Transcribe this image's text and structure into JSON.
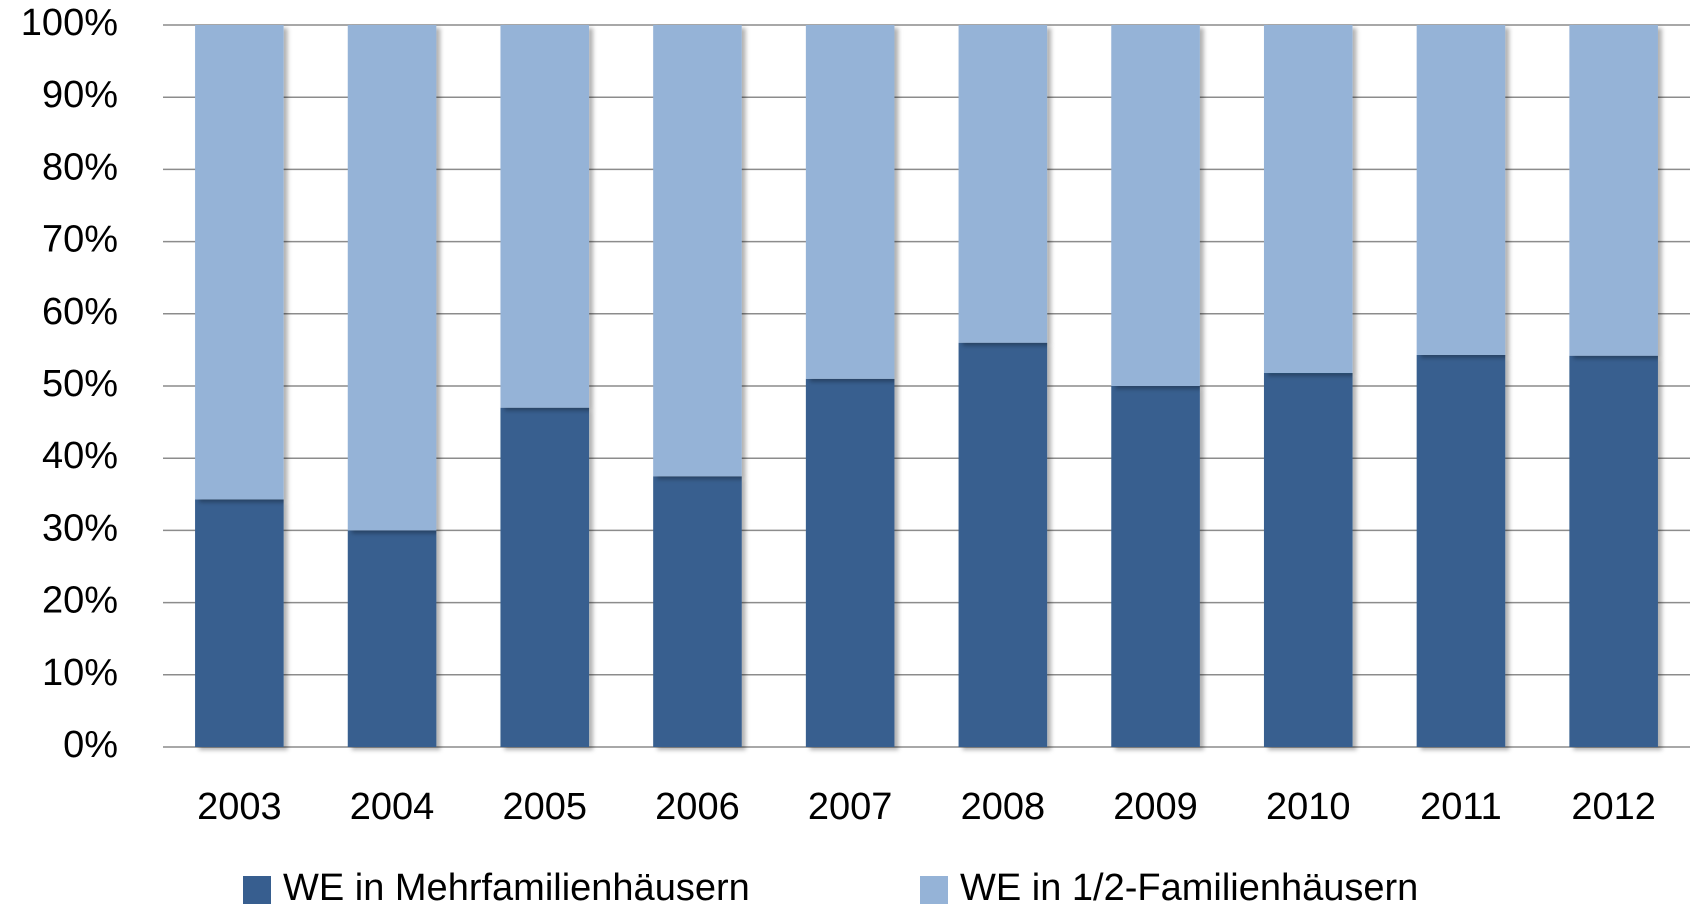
{
  "chart_data": {
    "type": "stacked_bar",
    "categories": [
      "2003",
      "2004",
      "2005",
      "2006",
      "2007",
      "2008",
      "2009",
      "2010",
      "2011",
      "2012"
    ],
    "series": [
      {
        "name": "WE in Mehrfamilienhäusern",
        "color": "#375e8f",
        "values": [
          34.3,
          30,
          47,
          37.5,
          51,
          56,
          50,
          51.8,
          54.3,
          54.2
        ]
      },
      {
        "name": "WE in 1/2-Familienhäusern",
        "color": "#95b3d7",
        "values": [
          65.7,
          70,
          53,
          62.5,
          49,
          44,
          50,
          48.2,
          45.7,
          45.8
        ]
      }
    ],
    "ylim": [
      0,
      100
    ],
    "yticks": [
      {
        "value": 0,
        "label": "0%"
      },
      {
        "value": 10,
        "label": "10%"
      },
      {
        "value": 20,
        "label": "20%"
      },
      {
        "value": 30,
        "label": "30%"
      },
      {
        "value": 40,
        "label": "40%"
      },
      {
        "value": 50,
        "label": "50%"
      },
      {
        "value": 60,
        "label": "60%"
      },
      {
        "value": 70,
        "label": "70%"
      },
      {
        "value": 80,
        "label": "80%"
      },
      {
        "value": 90,
        "label": "90%"
      },
      {
        "value": 100,
        "label": "100%"
      }
    ],
    "grid": true,
    "legend": "bottom"
  }
}
